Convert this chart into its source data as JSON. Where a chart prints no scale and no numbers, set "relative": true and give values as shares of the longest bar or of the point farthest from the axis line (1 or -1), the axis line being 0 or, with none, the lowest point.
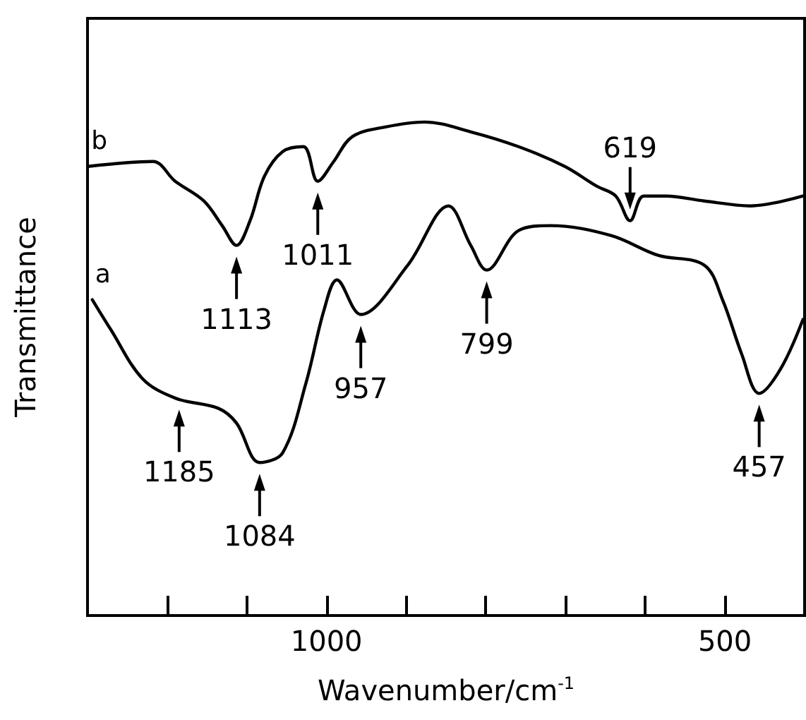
{
  "chart_data": {
    "type": "line",
    "relative": true,
    "xlabel": "Wavenumber/cm$^{-1}$",
    "ylabel": "Transmittance",
    "xlim": [
      1300,
      400
    ],
    "xticks": [
      {
        "value": 1200,
        "label": null
      },
      {
        "value": 1100,
        "label": null
      },
      1000,
      {
        "value": 900,
        "label": null
      },
      {
        "value": 800,
        "label": null
      },
      {
        "value": 700,
        "label": null
      },
      {
        "value": 600,
        "label": null
      },
      500
    ],
    "grid": false,
    "legend": false,
    "marker": "none",
    "line_style": "solid",
    "series": [
      {
        "name": "a",
        "color": "#000000",
        "x": [
          1294,
          1271,
          1231,
          1189,
          1136,
          1113,
          1084,
          1055,
          1026,
          1003,
          987,
          957,
          898,
          847,
          819,
          799,
          759,
          719,
          643,
          584,
          526,
          503,
          479,
          457,
          430,
          402
        ],
        "values": [
          0.64,
          0.58,
          0.48,
          0.44,
          0.42,
          0.39,
          0.31,
          0.33,
          0.47,
          0.62,
          0.68,
          0.61,
          0.71,
          0.83,
          0.75,
          0.7,
          0.78,
          0.79,
          0.77,
          0.73,
          0.71,
          0.64,
          0.53,
          0.45,
          0.5,
          0.6
        ]
      },
      {
        "name": "b",
        "color": "#000000",
        "x": [
          1299,
          1218,
          1190,
          1154,
          1131,
          1113,
          1096,
          1078,
          1055,
          1029,
          1011,
          991,
          968,
          926,
          877,
          819,
          759,
          701,
          661,
          637,
          619,
          602,
          574,
          526,
          468,
          402
        ],
        "values": [
          0.91,
          0.92,
          0.88,
          0.84,
          0.79,
          0.75,
          0.8,
          0.89,
          0.94,
          0.95,
          0.88,
          0.92,
          0.97,
          0.99,
          1.0,
          0.98,
          0.95,
          0.91,
          0.87,
          0.85,
          0.8,
          0.85,
          0.85,
          0.84,
          0.83,
          0.85
        ]
      }
    ],
    "annotations": [
      {
        "text": "1113",
        "x": 1113,
        "y": 0.75
      },
      {
        "text": "1011",
        "x": 1011,
        "y": 0.88
      },
      {
        "text": "619",
        "x": 619,
        "y": 0.8
      },
      {
        "text": "1185",
        "x": 1185,
        "y": 0.44
      },
      {
        "text": "1084",
        "x": 1084,
        "y": 0.31
      },
      {
        "text": "957",
        "x": 957,
        "y": 0.61
      },
      {
        "text": "799",
        "x": 799,
        "y": 0.7
      },
      {
        "text": "457",
        "x": 457,
        "y": 0.45
      }
    ]
  }
}
